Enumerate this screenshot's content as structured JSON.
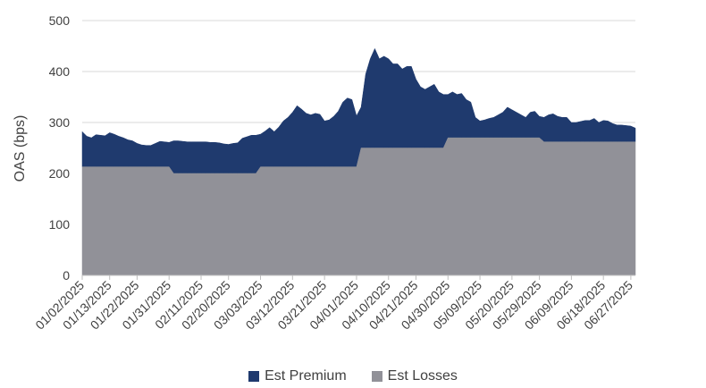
{
  "colors": {
    "premium": "#1f3a6e",
    "losses": "#919198",
    "grid": "#d9d9d9",
    "text": "#404040"
  },
  "chart_data": {
    "type": "area",
    "stacked": true,
    "xlabel": "",
    "ylabel": "OAS (bps)",
    "ylim": [
      0,
      500
    ],
    "yticks": [
      0,
      100,
      200,
      300,
      400,
      500
    ],
    "grid": "horizontal",
    "legend_position": "bottom",
    "x_tick_labels": [
      "01/02/2025",
      "01/13/2025",
      "01/22/2025",
      "01/31/2025",
      "02/11/2025",
      "02/20/2025",
      "03/03/2025",
      "03/12/2025",
      "03/21/2025",
      "04/01/2025",
      "04/10/2025",
      "04/21/2025",
      "04/30/2025",
      "05/09/2025",
      "05/20/2025",
      "05/29/2025",
      "06/09/2025",
      "06/18/2025",
      "06/27/2025"
    ],
    "x": [
      "01/02/2025",
      "01/03/2025",
      "01/06/2025",
      "01/07/2025",
      "01/08/2025",
      "01/10/2025",
      "01/13/2025",
      "01/14/2025",
      "01/15/2025",
      "01/16/2025",
      "01/17/2025",
      "01/21/2025",
      "01/22/2025",
      "01/23/2025",
      "01/24/2025",
      "01/27/2025",
      "01/28/2025",
      "01/29/2025",
      "01/30/2025",
      "01/31/2025",
      "02/03/2025",
      "02/04/2025",
      "02/05/2025",
      "02/06/2025",
      "02/07/2025",
      "02/10/2025",
      "02/11/2025",
      "02/12/2025",
      "02/13/2025",
      "02/14/2025",
      "02/18/2025",
      "02/19/2025",
      "02/20/2025",
      "02/21/2025",
      "02/24/2025",
      "02/25/2025",
      "02/26/2025",
      "02/27/2025",
      "02/28/2025",
      "03/03/2025",
      "03/04/2025",
      "03/05/2025",
      "03/06/2025",
      "03/07/2025",
      "03/10/2025",
      "03/11/2025",
      "03/12/2025",
      "03/13/2025",
      "03/14/2025",
      "03/17/2025",
      "03/18/2025",
      "03/19/2025",
      "03/20/2025",
      "03/21/2025",
      "03/24/2025",
      "03/25/2025",
      "03/26/2025",
      "03/27/2025",
      "03/28/2025",
      "03/31/2025",
      "04/01/2025",
      "04/02/2025",
      "04/03/2025",
      "04/04/2025",
      "04/07/2025",
      "04/08/2025",
      "04/09/2025",
      "04/10/2025",
      "04/11/2025",
      "04/14/2025",
      "04/15/2025",
      "04/16/2025",
      "04/17/2025",
      "04/21/2025",
      "04/22/2025",
      "04/23/2025",
      "04/24/2025",
      "04/25/2025",
      "04/28/2025",
      "04/29/2025",
      "04/30/2025",
      "05/01/2025",
      "05/02/2025",
      "05/05/2025",
      "05/06/2025",
      "05/07/2025",
      "05/08/2025",
      "05/09/2025",
      "05/12/2025",
      "05/13/2025",
      "05/14/2025",
      "05/15/2025",
      "05/16/2025",
      "05/19/2025",
      "05/20/2025",
      "05/21/2025",
      "05/22/2025",
      "05/23/2025",
      "05/27/2025",
      "05/28/2025",
      "05/29/2025",
      "05/30/2025",
      "06/02/2025",
      "06/03/2025",
      "06/04/2025",
      "06/05/2025",
      "06/06/2025",
      "06/09/2025",
      "06/10/2025",
      "06/11/2025",
      "06/12/2025",
      "06/13/2025",
      "06/16/2025",
      "06/17/2025",
      "06/18/2025",
      "06/20/2025",
      "06/23/2025",
      "06/24/2025",
      "06/25/2025",
      "06/26/2025",
      "06/27/2025",
      "06/30/2025"
    ],
    "series": [
      {
        "name": "Est Losses",
        "values": [
          213,
          213,
          213,
          213,
          213,
          213,
          213,
          213,
          213,
          213,
          213,
          213,
          213,
          213,
          213,
          213,
          213,
          213,
          213,
          213,
          200,
          200,
          200,
          200,
          200,
          200,
          200,
          200,
          200,
          200,
          200,
          200,
          200,
          200,
          200,
          200,
          200,
          200,
          200,
          213,
          213,
          213,
          213,
          213,
          213,
          213,
          213,
          213,
          213,
          213,
          213,
          213,
          213,
          213,
          213,
          213,
          213,
          213,
          213,
          213,
          213,
          250,
          250,
          250,
          250,
          250,
          250,
          250,
          250,
          250,
          250,
          250,
          250,
          250,
          250,
          250,
          250,
          250,
          250,
          250,
          270,
          270,
          270,
          270,
          270,
          270,
          270,
          270,
          270,
          270,
          270,
          270,
          270,
          270,
          270,
          270,
          270,
          270,
          270,
          270,
          270,
          262,
          262,
          262,
          262,
          262,
          262,
          262,
          262,
          262,
          262,
          262,
          262,
          262,
          262,
          262,
          262,
          262,
          262,
          262,
          262,
          262
        ]
      },
      {
        "name": "Est Premium",
        "values": [
          69,
          60,
          57,
          63,
          62,
          61,
          67,
          64,
          60,
          57,
          53,
          51,
          46,
          43,
          42,
          42,
          46,
          50,
          49,
          48,
          64,
          64,
          63,
          62,
          62,
          62,
          62,
          62,
          61,
          61,
          60,
          58,
          57,
          59,
          60,
          69,
          72,
          75,
          75,
          64,
          70,
          77,
          69,
          78,
          90,
          97,
          107,
          120,
          113,
          105,
          102,
          105,
          103,
          90,
          92,
          99,
          109,
          127,
          135,
          132,
          100,
          80,
          145,
          175,
          195,
          175,
          180,
          175,
          165,
          165,
          155,
          160,
          160,
          135,
          120,
          115,
          120,
          125,
          110,
          105,
          85,
          90,
          85,
          87,
          75,
          70,
          40,
          33,
          35,
          38,
          40,
          45,
          50,
          60,
          55,
          50,
          45,
          40,
          50,
          52,
          42,
          48,
          53,
          55,
          50,
          48,
          48,
          38,
          38,
          40,
          42,
          42,
          46,
          38,
          42,
          41,
          36,
          33,
          33,
          32,
          31,
          27
        ]
      }
    ]
  }
}
